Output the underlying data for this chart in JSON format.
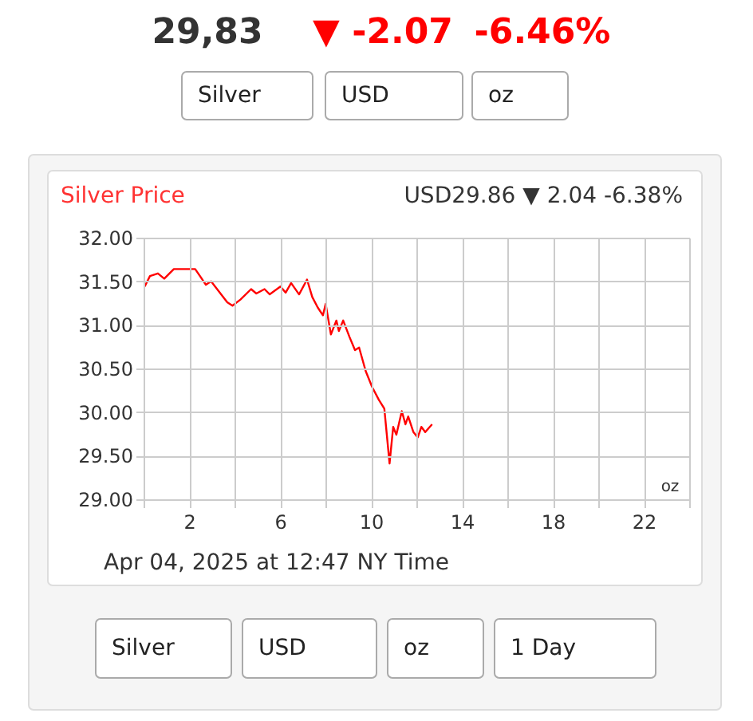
{
  "chart_data": {
    "type": "line",
    "title": "Silver Price",
    "subtitle": "USD29.86 ▼ 2.04 -6.38%",
    "annotations": [
      "29,83",
      "▼ -2.07",
      "-6.46%",
      "Silver",
      "USD",
      "oz",
      "Apr 04, 2025 at 12:47 NY Time",
      "oz",
      "Silver",
      "USD",
      "oz",
      "1 Day"
    ],
    "x": [
      0.05,
      0.28,
      0.63,
      0.91,
      1.33,
      2.04,
      2.27,
      2.74,
      2.97,
      3.68,
      3.91,
      4.26,
      4.73,
      4.96,
      5.32,
      5.55,
      6.02,
      6.25,
      6.49,
      6.84,
      7.19,
      7.42,
      7.66,
      7.89,
      8.01,
      8.24,
      8.48,
      8.59,
      8.78,
      9.06,
      9.3,
      9.48,
      9.77,
      10.05,
      10.35,
      10.59,
      10.82,
      10.98,
      11.12,
      11.36,
      11.52,
      11.64,
      11.87,
      12.06,
      12.22,
      12.39,
      12.69
    ],
    "series": [
      {
        "color": "#ff0000",
        "values": [
          31.44,
          31.56,
          31.59,
          31.53,
          31.64,
          31.64,
          31.64,
          31.46,
          31.5,
          31.26,
          31.22,
          31.29,
          31.41,
          31.36,
          31.41,
          31.35,
          31.44,
          31.37,
          31.48,
          31.35,
          31.52,
          31.32,
          31.2,
          31.11,
          31.24,
          30.89,
          31.05,
          30.93,
          31.05,
          30.86,
          30.71,
          30.74,
          30.47,
          30.29,
          30.14,
          30.04,
          29.41,
          29.83,
          29.74,
          30.01,
          29.86,
          29.95,
          29.77,
          29.71,
          29.83,
          29.77,
          29.86
        ]
      }
    ],
    "xlim": [
      0,
      24
    ],
    "xticks": [
      {
        "value": 0,
        "label": null
      },
      2,
      {
        "value": 4,
        "label": null
      },
      6,
      {
        "value": 8,
        "label": null
      },
      10,
      {
        "value": 12,
        "label": null
      },
      14,
      {
        "value": 16,
        "label": null
      },
      18,
      {
        "value": 20,
        "label": null
      },
      22,
      {
        "value": 24,
        "label": null
      }
    ],
    "ylim": [
      29,
      32
    ],
    "yticks": [
      {
        "value": 29,
        "label": "29.00"
      },
      {
        "value": 29.5,
        "label": "29.50"
      },
      {
        "value": 30,
        "label": "30.00"
      },
      {
        "value": 30.5,
        "label": "30.50"
      },
      {
        "value": 31,
        "label": "31.00"
      },
      {
        "value": 31.5,
        "label": "31.50"
      },
      {
        "value": 32,
        "label": "32.00"
      }
    ],
    "grid": true,
    "line_style": "solid"
  }
}
